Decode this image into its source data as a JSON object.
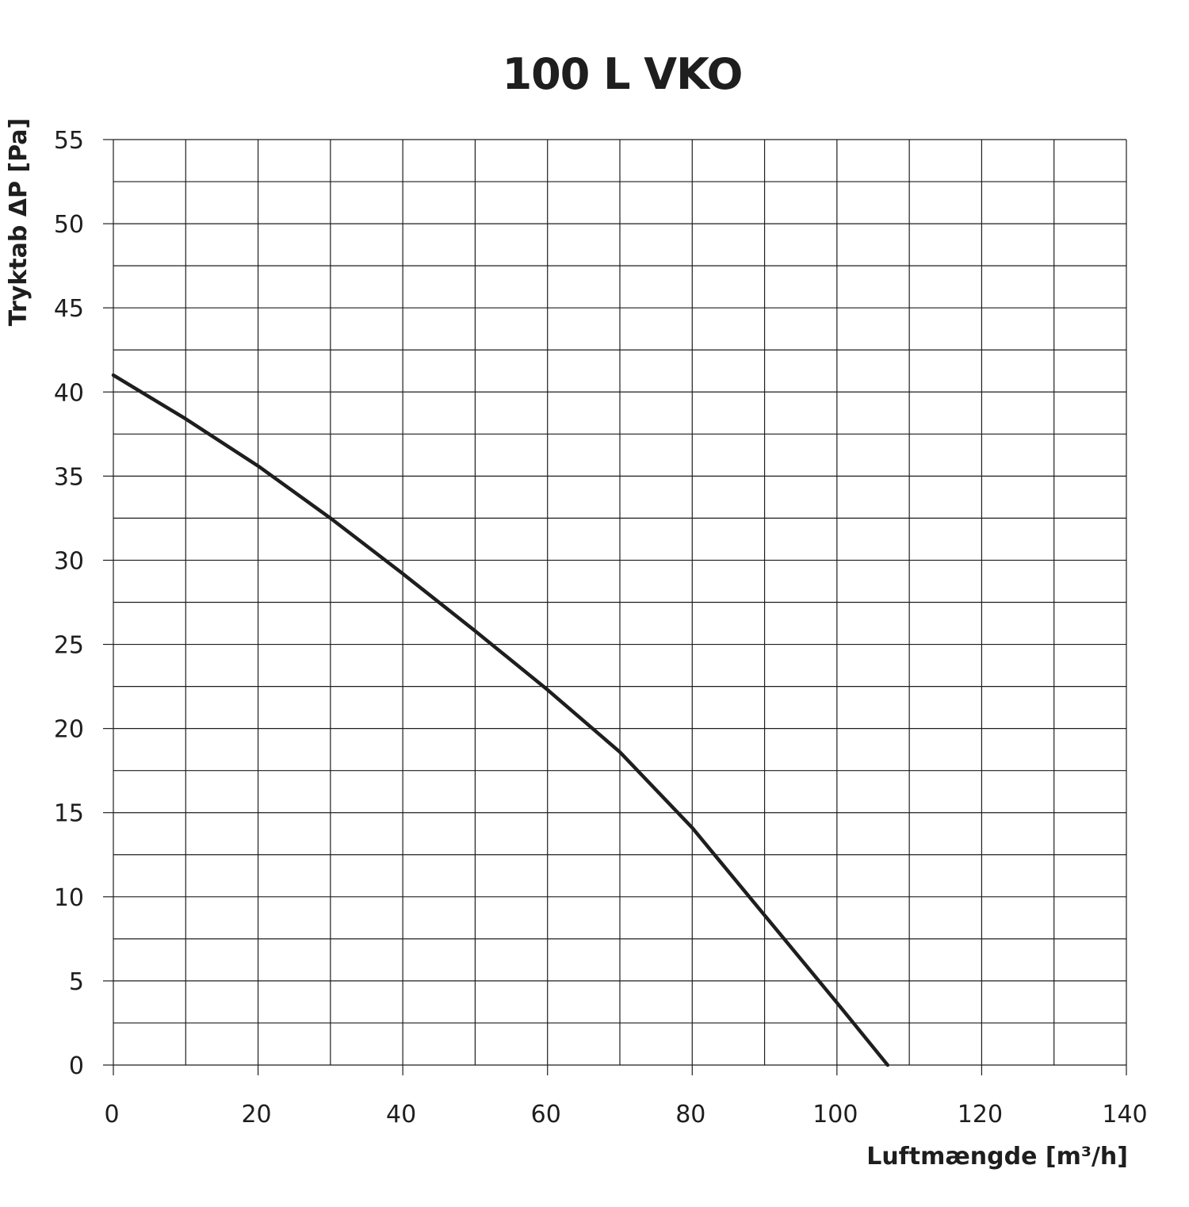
{
  "chart_data": {
    "type": "line",
    "title": "100 L VKO",
    "xlabel": "Luftmængde [m³/h]",
    "ylabel": "Tryktab ΔP [Pa]",
    "xlim": [
      0,
      140
    ],
    "ylim": [
      0,
      55
    ],
    "x_ticks": [
      0,
      20,
      40,
      60,
      80,
      100,
      120,
      140
    ],
    "x_tick_labels": [
      "0",
      "20",
      "40",
      "60",
      "80",
      "100",
      "120",
      "140"
    ],
    "y_ticks": [
      0,
      5,
      10,
      15,
      20,
      25,
      30,
      35,
      40,
      45,
      50,
      55
    ],
    "y_tick_labels": [
      "0",
      "5",
      "10",
      "15",
      "20",
      "25",
      "30",
      "35",
      "40",
      "45",
      "50",
      "55"
    ],
    "x_minor_grid_step": 10,
    "y_minor_grid_step": 2.5,
    "grid": true,
    "line_color": "#1e1e1e",
    "series": [
      {
        "x": [
          0,
          10,
          20,
          30,
          40,
          50,
          60,
          70,
          80,
          90,
          100,
          107
        ],
        "y": [
          41,
          38.4,
          35.6,
          32.5,
          29.2,
          25.8,
          22.3,
          18.6,
          14.1,
          8.9,
          3.7,
          0
        ]
      }
    ]
  }
}
